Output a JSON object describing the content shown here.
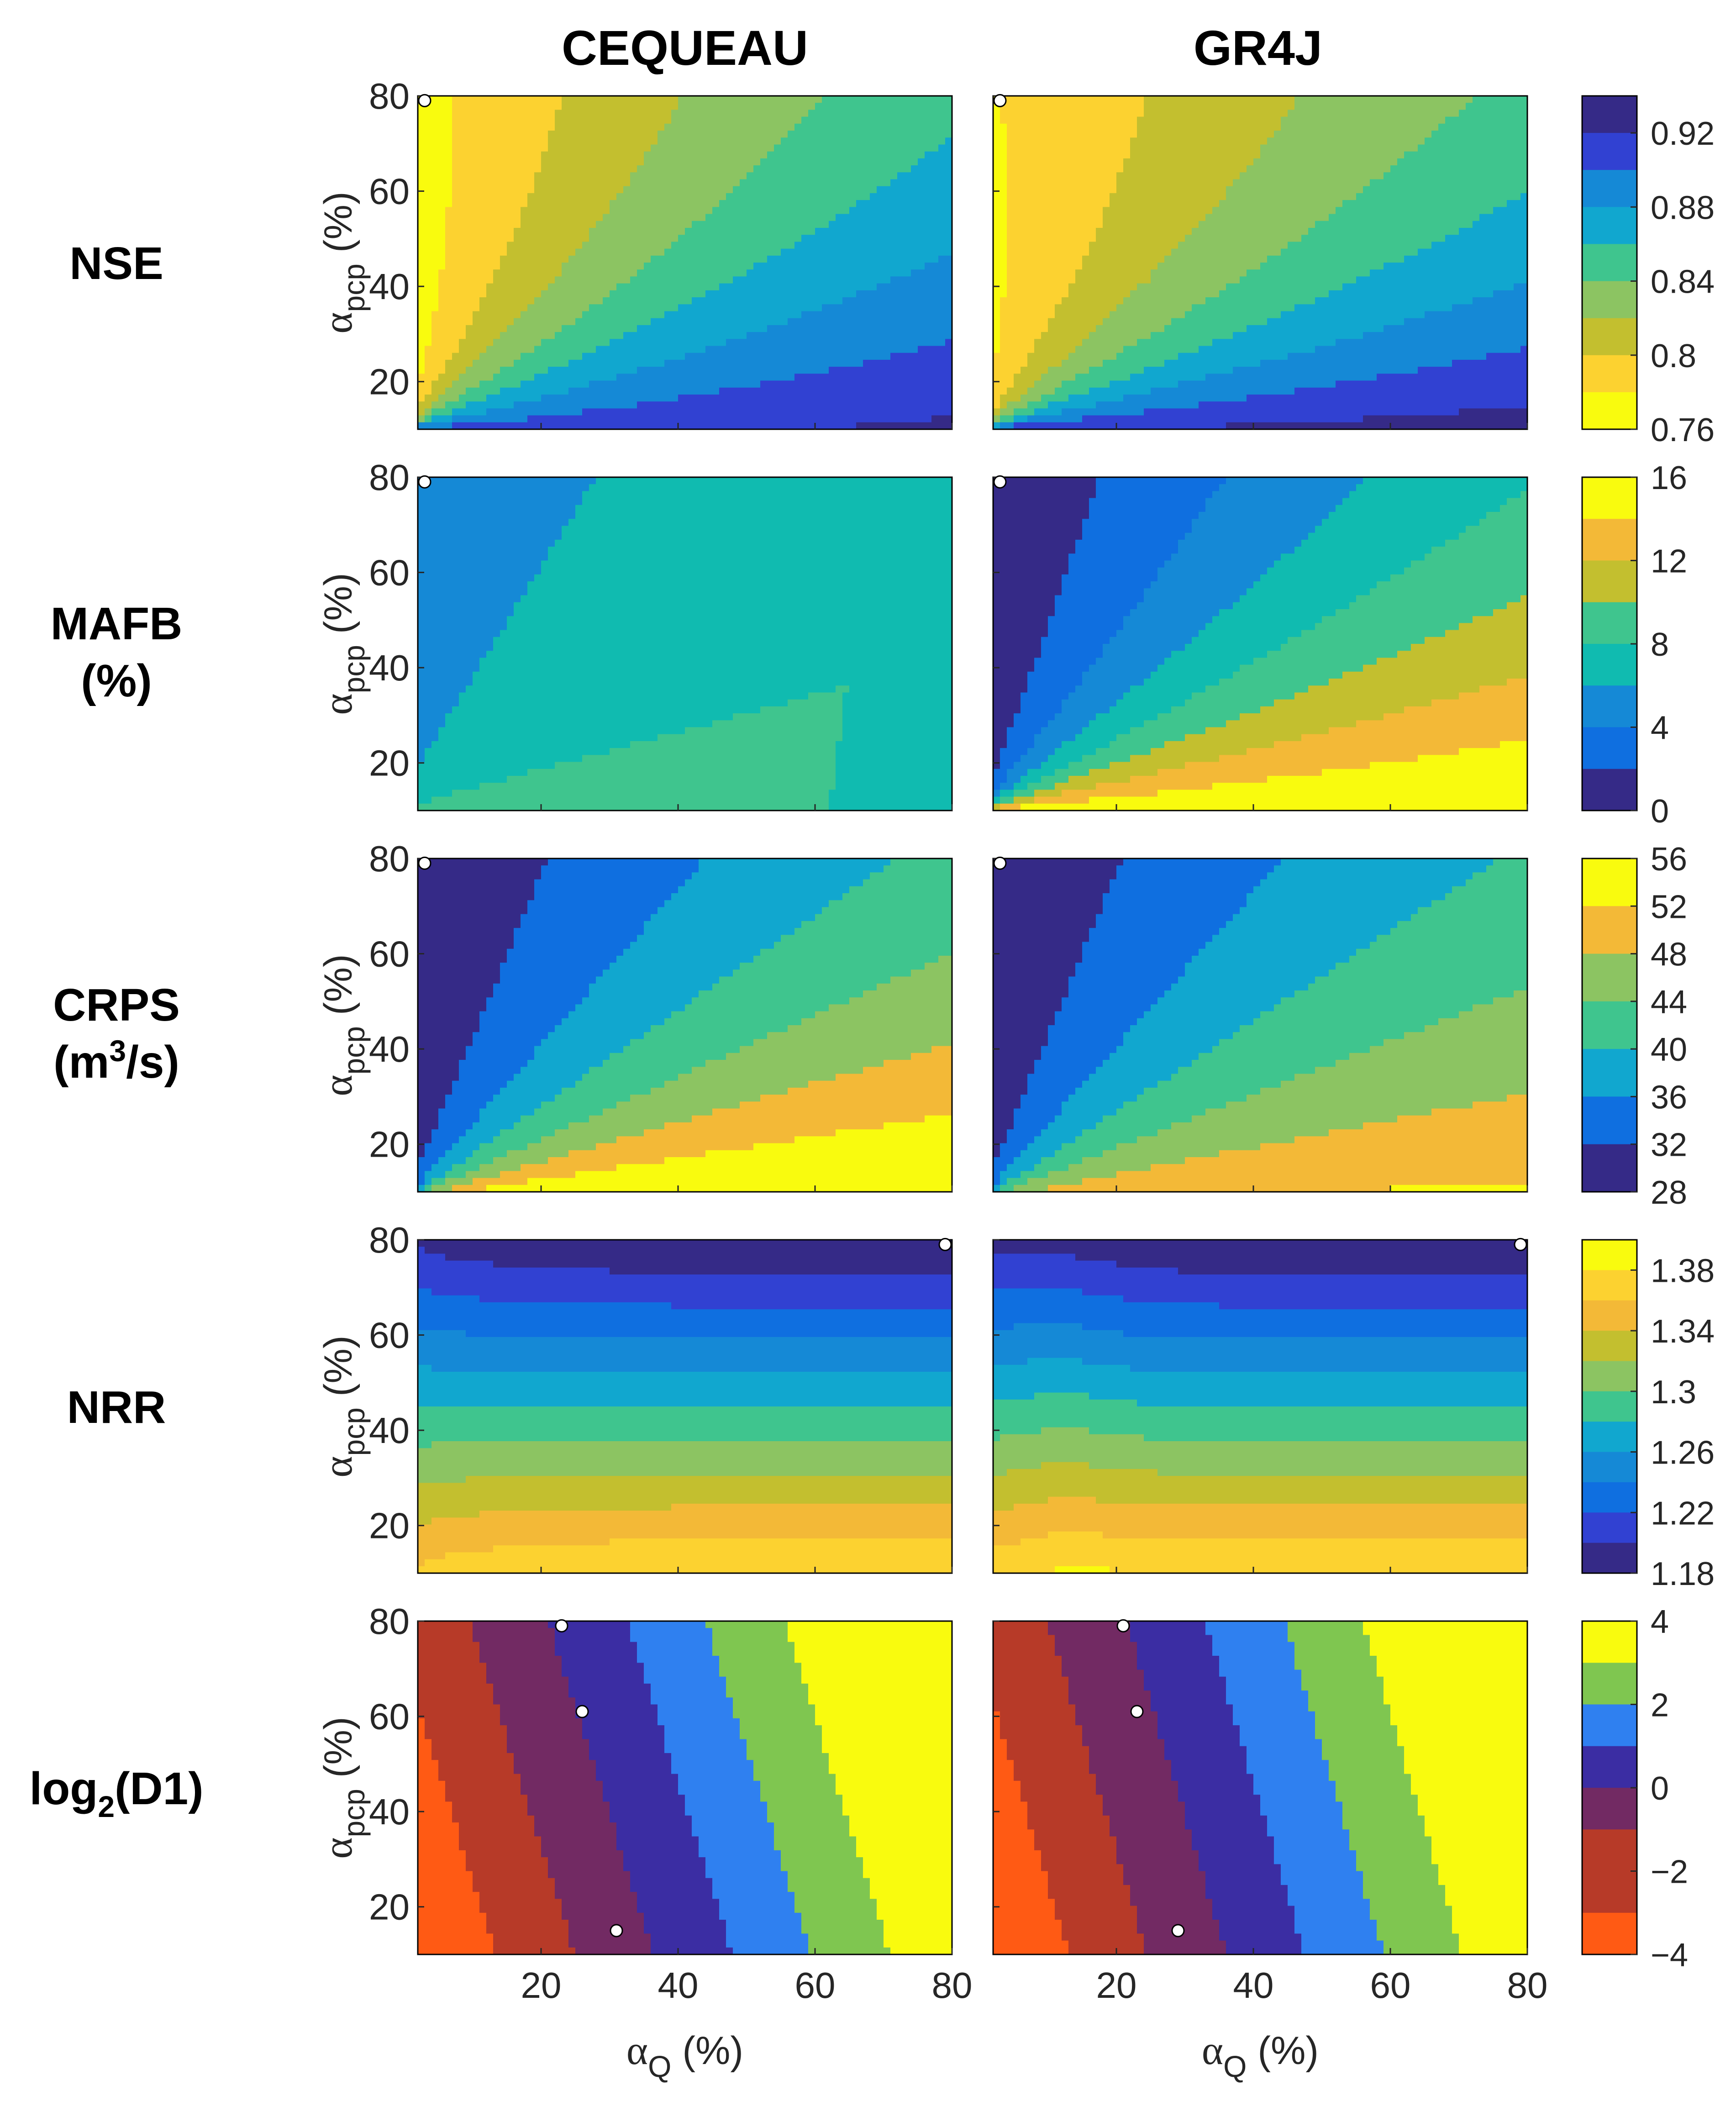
{
  "columns": [
    "CEQUEAU",
    "GR4J"
  ],
  "row_labels": [
    {
      "line1": "NSE",
      "line2": ""
    },
    {
      "line1": "MAFB",
      "line2": "(%)"
    },
    {
      "line1": "CRPS",
      "line2": "(m3/s)"
    },
    {
      "line1": "NRR",
      "line2": ""
    },
    {
      "line1": "log2(D1)",
      "line2": ""
    }
  ],
  "axes": {
    "x_label": "αQ (%)",
    "y_label": "αpcp (%)",
    "x_ticks": [
      "20",
      "40",
      "60",
      "80"
    ],
    "y_ticks": [
      "20",
      "40",
      "60",
      "80"
    ]
  },
  "colors": {
    "parula": [
      "#352a87",
      "#3141d2",
      "#0f6fe0",
      "#1589d6",
      "#11a7cf",
      "#10bbb0",
      "#3fc58e",
      "#8cc462",
      "#c3bf2f",
      "#f3b937",
      "#fcd230",
      "#f9fb0e"
    ],
    "d1": [
      "#ff5a14",
      "#b73a28",
      "#722a63",
      "#3b2da3",
      "#2f80f0",
      "#7fc650",
      "#f9fb0e"
    ],
    "marker": "#ffffff",
    "line": "#000000"
  },
  "chart_data": [
    {
      "type": "contourf",
      "metric": "NSE",
      "model": "CEQUEAU",
      "xlabel": "αQ (%)",
      "ylabel": "αpcp (%)",
      "xlim": [
        2,
        80
      ],
      "ylim": [
        10,
        80
      ],
      "colorbar_range": [
        0.76,
        0.94
      ],
      "best_points": [
        [
          3,
          79
        ]
      ]
    },
    {
      "type": "contourf",
      "metric": "NSE",
      "model": "GR4J",
      "xlabel": "αQ (%)",
      "ylabel": "αpcp (%)",
      "xlim": [
        2,
        80
      ],
      "ylim": [
        10,
        80
      ],
      "colorbar_range": [
        0.76,
        0.94
      ],
      "best_points": [
        [
          3,
          79
        ]
      ]
    },
    {
      "type": "contourf",
      "metric": "MAFB (%)",
      "model": "CEQUEAU",
      "xlabel": "αQ (%)",
      "ylabel": "αpcp (%)",
      "xlim": [
        2,
        80
      ],
      "ylim": [
        10,
        80
      ],
      "colorbar_range": [
        0,
        16
      ],
      "best_points": [
        [
          3,
          79
        ]
      ]
    },
    {
      "type": "contourf",
      "metric": "MAFB (%)",
      "model": "GR4J",
      "xlabel": "αQ (%)",
      "ylabel": "αpcp (%)",
      "xlim": [
        2,
        80
      ],
      "ylim": [
        10,
        80
      ],
      "colorbar_range": [
        0,
        16
      ],
      "best_points": [
        [
          3,
          79
        ]
      ]
    },
    {
      "type": "contourf",
      "metric": "CRPS (m3/s)",
      "model": "CEQUEAU",
      "xlabel": "αQ (%)",
      "ylabel": "αpcp (%)",
      "xlim": [
        2,
        80
      ],
      "ylim": [
        10,
        80
      ],
      "colorbar_range": [
        28,
        56
      ],
      "best_points": [
        [
          3,
          79
        ]
      ]
    },
    {
      "type": "contourf",
      "metric": "CRPS (m3/s)",
      "model": "GR4J",
      "xlabel": "αQ (%)",
      "ylabel": "αpcp (%)",
      "xlim": [
        2,
        80
      ],
      "ylim": [
        10,
        80
      ],
      "colorbar_range": [
        28,
        56
      ],
      "best_points": [
        [
          3,
          79
        ]
      ]
    },
    {
      "type": "contourf",
      "metric": "NRR",
      "model": "CEQUEAU",
      "xlabel": "αQ (%)",
      "ylabel": "αpcp (%)",
      "xlim": [
        2,
        80
      ],
      "ylim": [
        10,
        80
      ],
      "colorbar_range": [
        1.18,
        1.4
      ],
      "best_points": [
        [
          79,
          79
        ]
      ]
    },
    {
      "type": "contourf",
      "metric": "NRR",
      "model": "GR4J",
      "xlabel": "αQ (%)",
      "ylabel": "αpcp (%)",
      "xlim": [
        2,
        80
      ],
      "ylim": [
        10,
        80
      ],
      "colorbar_range": [
        1.18,
        1.4
      ],
      "best_points": [
        [
          79,
          79
        ]
      ]
    },
    {
      "type": "contourf",
      "metric": "log2(D1)",
      "model": "CEQUEAU",
      "xlabel": "αQ (%)",
      "ylabel": "αpcp (%)",
      "xlim": [
        2,
        80
      ],
      "ylim": [
        10,
        80
      ],
      "colorbar_range": [
        -4,
        4
      ],
      "best_points": [
        [
          23,
          79
        ],
        [
          26,
          61
        ],
        [
          31,
          15
        ]
      ]
    },
    {
      "type": "contourf",
      "metric": "log2(D1)",
      "model": "GR4J",
      "xlabel": "αQ (%)",
      "ylabel": "αpcp (%)",
      "xlim": [
        2,
        80
      ],
      "ylim": [
        10,
        80
      ],
      "colorbar_range": [
        -4,
        4
      ],
      "best_points": [
        [
          21,
          79
        ],
        [
          23,
          61
        ],
        [
          29,
          15
        ]
      ]
    }
  ],
  "colorbars": [
    {
      "metric": "NSE",
      "min": 0.76,
      "max": 0.94,
      "ticks": [
        "0.92",
        "0.88",
        "0.84",
        "0.8",
        "0.76"
      ],
      "tick_values": [
        0.92,
        0.88,
        0.84,
        0.8,
        0.76
      ],
      "levels": 9,
      "reversed": true
    },
    {
      "metric": "MAFB (%)",
      "min": 0,
      "max": 16,
      "ticks": [
        "16",
        "12",
        "8",
        "4",
        "0"
      ],
      "tick_values": [
        16,
        12,
        8,
        4,
        0
      ],
      "levels": 8,
      "reversed": false
    },
    {
      "metric": "CRPS (m3/s)",
      "min": 28,
      "max": 56,
      "ticks": [
        "56",
        "52",
        "48",
        "44",
        "40",
        "36",
        "32",
        "28"
      ],
      "tick_values": [
        56,
        52,
        48,
        44,
        40,
        36,
        32,
        28
      ],
      "levels": 7,
      "reversed": false
    },
    {
      "metric": "NRR",
      "min": 1.18,
      "max": 1.4,
      "ticks": [
        "1.38",
        "1.34",
        "1.3",
        "1.26",
        "1.22",
        "1.18"
      ],
      "tick_values": [
        1.38,
        1.34,
        1.3,
        1.26,
        1.22,
        1.18
      ],
      "levels": 11,
      "reversed": false
    },
    {
      "metric": "log2(D1)",
      "min": -4,
      "max": 4,
      "ticks": [
        "4",
        "2",
        "0",
        "−2",
        "−4"
      ],
      "tick_values": [
        4,
        2,
        0,
        -2,
        -4
      ],
      "levels": 8,
      "reversed": false
    }
  ]
}
